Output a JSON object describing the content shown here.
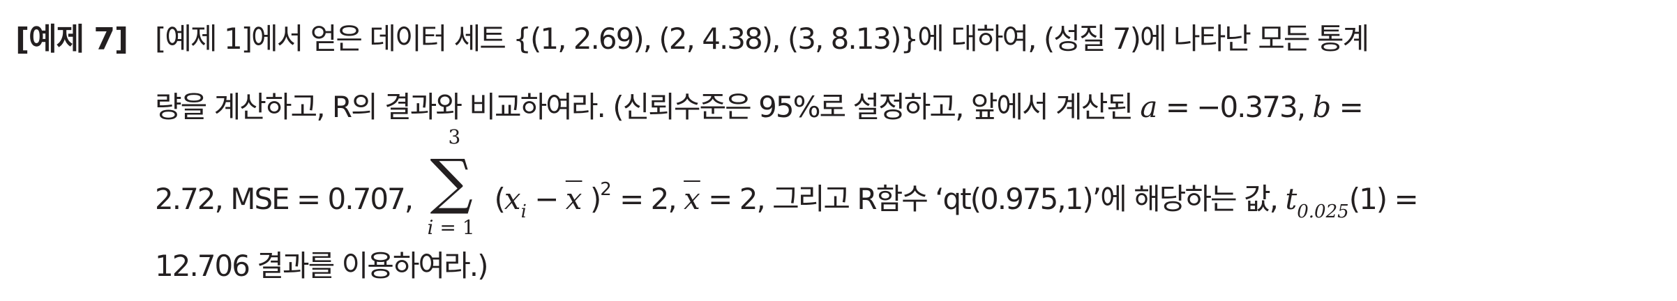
{
  "problem": {
    "label": "[예제 7]",
    "line1": "[예제 1]에서 얻은 데이터 세트 {(1, 2.69), (2, 4.38), (3, 8.13)}에 대하여, (성질 7)에 나타난 모든 통계",
    "line2_text": "량을 계산하고, R의 결과와 비교하여라. (신뢰수준은 95%로 설정하고, 앞에서 계산된 ",
    "a_var": "a",
    "a_eq": " = −0.373, ",
    "b_var": "b",
    "b_eq": " =",
    "line3_start": "2.72, MSE = 0.707, ",
    "sum_top": "3",
    "sum_sign": "∑",
    "sum_bottom_var": "i",
    "sum_bottom_eq": " = 1",
    "paren_open": "(",
    "x_var": "x",
    "x_sub": "i",
    "minus": " − ",
    "xbar_var": "x",
    "paren_close": " )",
    "square": "2",
    "sum_value": " = 2, ",
    "xbar2_var": "x",
    "xbar2_eq": " = 2, 그리고 R함수 ‘qt(0.975,1)’에 해당하는 값, ",
    "t_var": "t",
    "t_sub": "0.025",
    "t_eq": "(1) =",
    "line4": "12.706 결과를 이용하여라.)"
  }
}
